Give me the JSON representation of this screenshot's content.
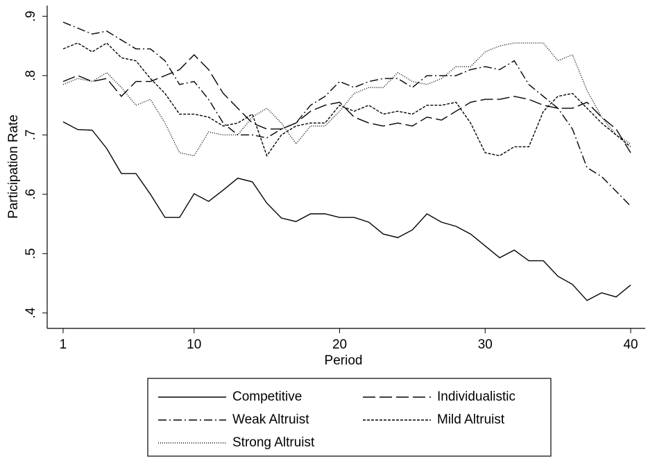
{
  "chart_data": {
    "type": "line",
    "xlabel": "Period",
    "ylabel": "Participation Rate",
    "xlim": [
      0,
      41
    ],
    "ylim": [
      0.374,
      0.918
    ],
    "xticks": [
      1,
      10,
      20,
      30,
      40
    ],
    "yticks": [
      {
        "value": 0.4,
        "label": ".4"
      },
      {
        "value": 0.5,
        "label": ".5"
      },
      {
        "value": 0.6,
        "label": ".6"
      },
      {
        "value": 0.7,
        "label": ".7"
      },
      {
        "value": 0.8,
        "label": ".8"
      },
      {
        "value": 0.9,
        "label": ".9"
      }
    ],
    "x": [
      1,
      2,
      3,
      4,
      5,
      6,
      7,
      8,
      9,
      10,
      11,
      12,
      13,
      14,
      15,
      16,
      17,
      18,
      19,
      20,
      21,
      22,
      23,
      24,
      25,
      26,
      27,
      28,
      29,
      30,
      31,
      32,
      33,
      34,
      35,
      36,
      37,
      38,
      39,
      40
    ],
    "series": [
      {
        "name": "Competitive",
        "color": "#000000",
        "dash": "none",
        "values": [
          0.722,
          0.709,
          0.708,
          0.677,
          0.635,
          0.635,
          0.6,
          0.561,
          0.561,
          0.601,
          0.588,
          0.607,
          0.627,
          0.621,
          0.585,
          0.56,
          0.554,
          0.567,
          0.567,
          0.561,
          0.561,
          0.553,
          0.533,
          0.527,
          0.54,
          0.567,
          0.553,
          0.546,
          0.533,
          0.513,
          0.493,
          0.506,
          0.488,
          0.488,
          0.462,
          0.448,
          0.421,
          0.434,
          0.427,
          0.447
        ]
      },
      {
        "name": "Individualistic",
        "color": "#000000",
        "dash": "18 6",
        "values": [
          0.79,
          0.8,
          0.79,
          0.795,
          0.765,
          0.79,
          0.79,
          0.8,
          0.81,
          0.835,
          0.81,
          0.77,
          0.745,
          0.72,
          0.71,
          0.71,
          0.72,
          0.74,
          0.75,
          0.755,
          0.73,
          0.72,
          0.715,
          0.72,
          0.715,
          0.73,
          0.725,
          0.74,
          0.755,
          0.76,
          0.76,
          0.765,
          0.76,
          0.75,
          0.745,
          0.745,
          0.755,
          0.73,
          0.71,
          0.67
        ]
      },
      {
        "name": "Weak Altruist",
        "color": "#000000",
        "dash": "12 4 2 4",
        "values": [
          0.89,
          0.88,
          0.87,
          0.875,
          0.86,
          0.845,
          0.845,
          0.825,
          0.785,
          0.79,
          0.76,
          0.72,
          0.7,
          0.7,
          0.695,
          0.71,
          0.72,
          0.75,
          0.765,
          0.79,
          0.78,
          0.79,
          0.795,
          0.795,
          0.78,
          0.8,
          0.8,
          0.8,
          0.81,
          0.815,
          0.81,
          0.825,
          0.785,
          0.765,
          0.745,
          0.71,
          0.645,
          0.63,
          0.605,
          0.58
        ]
      },
      {
        "name": "Mild Altruist",
        "color": "#000000",
        "dash": "4 2",
        "values": [
          0.845,
          0.855,
          0.84,
          0.855,
          0.83,
          0.825,
          0.795,
          0.77,
          0.735,
          0.735,
          0.73,
          0.715,
          0.72,
          0.735,
          0.665,
          0.7,
          0.715,
          0.72,
          0.72,
          0.75,
          0.74,
          0.75,
          0.735,
          0.74,
          0.735,
          0.75,
          0.75,
          0.755,
          0.72,
          0.67,
          0.665,
          0.68,
          0.68,
          0.74,
          0.765,
          0.77,
          0.745,
          0.72,
          0.7,
          0.68
        ]
      },
      {
        "name": "Strong Altruist",
        "color": "#000000",
        "dash": "1 2",
        "values": [
          0.785,
          0.795,
          0.79,
          0.805,
          0.78,
          0.75,
          0.76,
          0.72,
          0.67,
          0.665,
          0.705,
          0.7,
          0.7,
          0.73,
          0.745,
          0.72,
          0.685,
          0.715,
          0.715,
          0.74,
          0.77,
          0.78,
          0.78,
          0.805,
          0.79,
          0.785,
          0.795,
          0.815,
          0.815,
          0.84,
          0.85,
          0.855,
          0.855,
          0.855,
          0.825,
          0.835,
          0.775,
          0.73,
          0.7,
          0.685
        ]
      }
    ]
  }
}
